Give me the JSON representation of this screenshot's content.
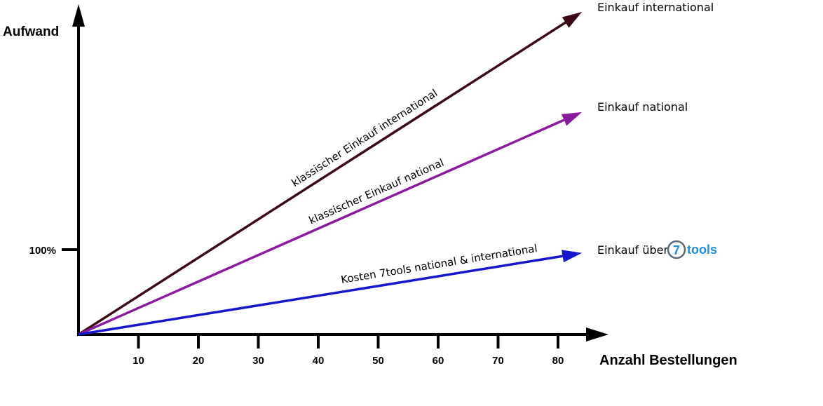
{
  "chart_data": {
    "type": "line",
    "xlabel": "Anzahl Bestellungen",
    "ylabel": "Aufwand",
    "x_ticks": [
      10,
      20,
      30,
      40,
      50,
      60,
      70,
      80
    ],
    "y_ticks": [
      {
        "value": 100,
        "label": "100%"
      }
    ],
    "xlim": [
      0,
      87
    ],
    "ylim": [
      0,
      340
    ],
    "grid": false,
    "legend": "none",
    "series": [
      {
        "key": "intl",
        "label": "klassischer Einkauf international",
        "end_label": "Einkauf international",
        "color": "#3c0a14",
        "x": [
          0,
          84
        ],
        "y": [
          0,
          380
        ]
      },
      {
        "key": "nat",
        "label": "klassischer Einkauf national",
        "end_label": "Einkauf national",
        "color": "#8b1a9e",
        "x": [
          0,
          84
        ],
        "y": [
          0,
          262
        ]
      },
      {
        "key": "tools",
        "label": "Kosten 7tools national & international",
        "end_label": "Einkauf über",
        "color": "#1616cc",
        "x": [
          0,
          84
        ],
        "y": [
          0,
          96
        ]
      }
    ],
    "logo": {
      "digit": "7",
      "text": "tools",
      "color": "#1f8fdb"
    }
  }
}
